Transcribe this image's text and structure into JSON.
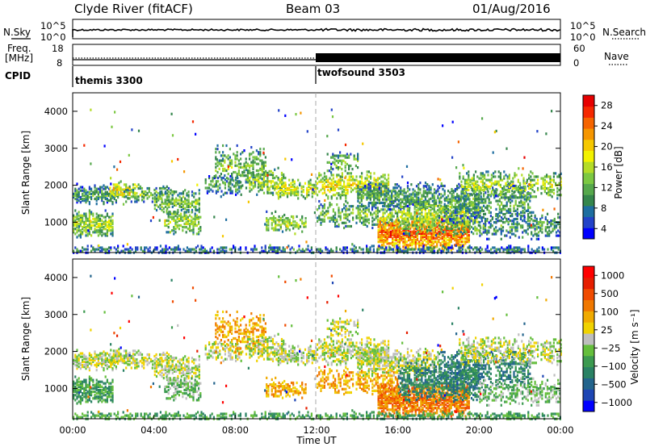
{
  "header": {
    "station": "Clyde River (fitACF)",
    "beam": "Beam 03",
    "date": "01/Aug/2016"
  },
  "colors": {
    "power": [
      "#0000ff",
      "#2343c8",
      "#1e6ea0",
      "#35864c",
      "#56a84c",
      "#7cc842",
      "#b4dc28",
      "#f2f200",
      "#f5c800",
      "#f59600",
      "#f56400",
      "#f52800",
      "#e60000"
    ],
    "velocity": [
      "#0000ff",
      "#1e46b4",
      "#23648c",
      "#2a8264",
      "#3c9a50",
      "#64be3c",
      "#bebebe",
      "#f0d200",
      "#f0aa00",
      "#f07800",
      "#f04b00",
      "#e61e00",
      "#ff0000"
    ],
    "ground_scatter": "#bebebe"
  },
  "chart_data": {
    "type": "heatmap",
    "x_axis": {
      "label": "Time UT",
      "range_hours": [
        0,
        24
      ],
      "ticks": [
        "00:00",
        "04:00",
        "08:00",
        "12:00",
        "16:00",
        "20:00",
        "00:00"
      ]
    },
    "top_panels": {
      "nsky": {
        "left_label": "N.Sky",
        "left_ticks": [
          "10^5",
          "10^0"
        ],
        "right_label": "N.Search",
        "right_ticks": [
          "10^5",
          "10^0"
        ]
      },
      "freq": {
        "left_label": "Freq.",
        "left_unit": "[MHz]",
        "left_ticks": [
          "18",
          "8"
        ],
        "right_label": "Nave",
        "right_ticks": [
          "60",
          "0"
        ]
      },
      "cpid": {
        "label": "CPID",
        "segments": [
          {
            "name": "themis 3300",
            "start_hour": 0
          },
          {
            "name": "twofsound 3503",
            "start_hour": 12
          }
        ]
      }
    },
    "panels": [
      {
        "name": "power",
        "ylabel": "Slant Range [km]",
        "yticks": [
          "4000",
          "3000",
          "2000",
          "1000"
        ],
        "ylim_km": [
          180,
          4500
        ],
        "colorbar_label": "Power [dB]",
        "colorbar_ticks": [
          "28",
          "24",
          "20",
          "16",
          "12",
          "8",
          "4"
        ]
      },
      {
        "name": "velocity",
        "ylabel": "Slant Range [km]",
        "yticks": [
          "4000",
          "3000",
          "2000",
          "1000"
        ],
        "ylim_km": [
          180,
          4500
        ],
        "colorbar_label": "Velocity [m s⁻¹]",
        "colorbar_ticks": [
          "1000",
          "500",
          "100",
          "25",
          "−25",
          "−100",
          "−500",
          "−1000"
        ]
      }
    ]
  }
}
